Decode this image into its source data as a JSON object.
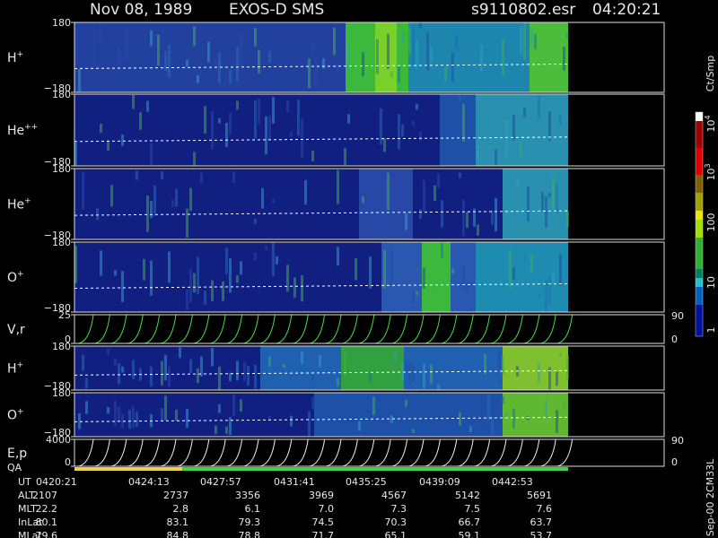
{
  "header": {
    "date": "Nov 08, 1989",
    "instrument": "EXOS-D SMS",
    "file": "s9110802.esr",
    "time": "04:20:21"
  },
  "panels": [
    {
      "label": "H",
      "sup": "+",
      "ticks": [
        "180",
        "−180"
      ]
    },
    {
      "label": "He",
      "sup": "++",
      "ticks": [
        "180",
        "−180"
      ]
    },
    {
      "label": "He",
      "sup": "+",
      "ticks": [
        "180",
        "−180"
      ]
    },
    {
      "label": "O",
      "sup": "+",
      "ticks": [
        "180",
        "−180"
      ]
    },
    {
      "label": "V,r",
      "ticks": [
        "25",
        "0"
      ],
      "right_ticks": [
        "90",
        "0"
      ]
    },
    {
      "label": "H",
      "sup": "+",
      "ticks": [
        "180",
        "−180"
      ]
    },
    {
      "label": "O",
      "sup": "+",
      "ticks": [
        "180",
        "−180"
      ]
    },
    {
      "label": "E,p",
      "label2": "QA",
      "ticks": [
        "4000",
        "0"
      ],
      "right_ticks": [
        "90",
        "0"
      ]
    }
  ],
  "colorbar": {
    "unit": "Ct/Smp",
    "ticks": [
      {
        "base": "1"
      },
      {
        "base": "10"
      },
      {
        "base": "100"
      },
      {
        "base": "10",
        "exp": "3"
      },
      {
        "base": "10",
        "exp": "4"
      }
    ]
  },
  "orbit": {
    "rows": [
      {
        "label": "UT",
        "values": [
          "0420:21",
          "0424:13",
          "0427:57",
          "0431:41",
          "0435:25",
          "0439:09",
          "0442:53"
        ]
      },
      {
        "label": "ALT",
        "values": [
          "2107",
          "2737",
          "3356",
          "3969",
          "4567",
          "5142",
          "5691"
        ]
      },
      {
        "label": "MLT",
        "values": [
          "22.2",
          "2.8",
          "6.1",
          "7.0",
          "7.3",
          "7.5",
          "7.6"
        ]
      },
      {
        "label": "InLat",
        "values": [
          "80.1",
          "83.1",
          "79.3",
          "74.5",
          "70.3",
          "66.7",
          "63.7"
        ]
      },
      {
        "label": "MLat",
        "values": [
          "79.6",
          "84.8",
          "78.8",
          "71.7",
          "65.1",
          "59.1",
          "53.7"
        ]
      }
    ]
  },
  "footer": "Sep-00 2CM33L"
}
